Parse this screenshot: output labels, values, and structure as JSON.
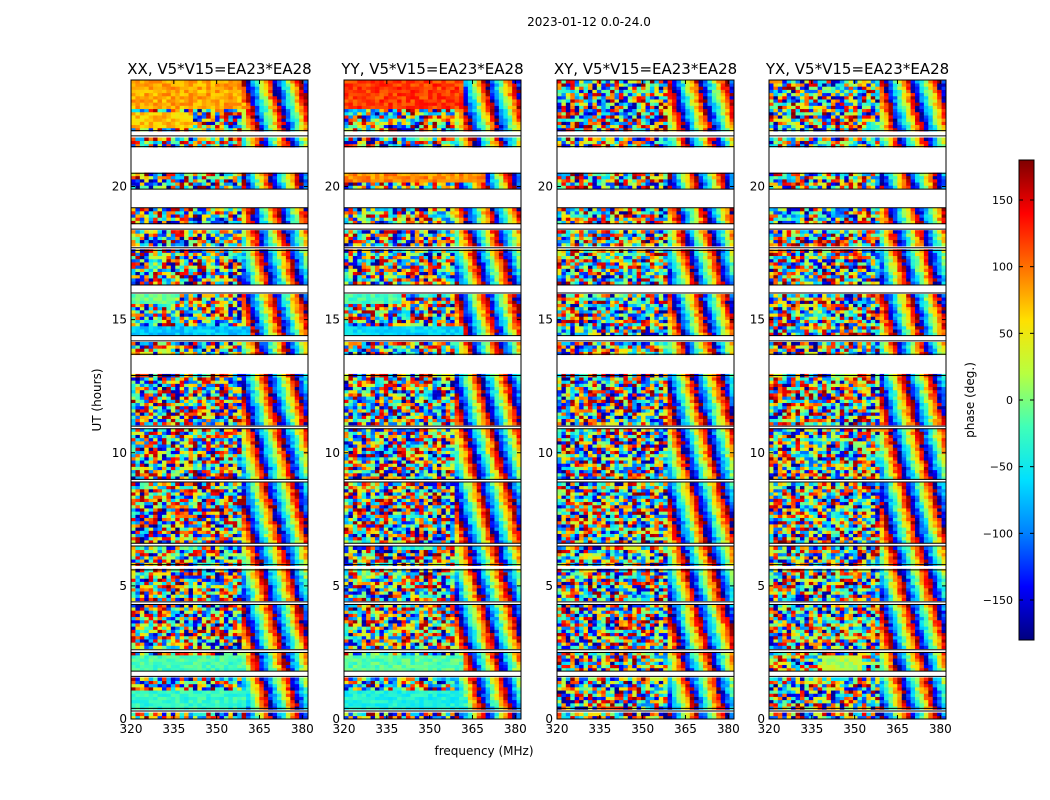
{
  "figure": {
    "suptitle": "2023-01-12 0.0-24.0",
    "xlabel": "frequency (MHz)",
    "ylabel": "UT (hours)"
  },
  "colorbar": {
    "label": "phase (deg.)",
    "range": [
      -180,
      180
    ],
    "ticks": [
      -150,
      -100,
      -50,
      0,
      50,
      100,
      150
    ],
    "tick_labels": [
      "−150",
      "−100",
      "−50",
      "0",
      "50",
      "100",
      "150"
    ],
    "colormap": [
      "#00007f",
      "#0000ff",
      "#0080ff",
      "#00e0ff",
      "#40ffb8",
      "#b8ff40",
      "#ffe000",
      "#ff7000",
      "#ff0000",
      "#7f0000"
    ]
  },
  "chart_data": [
    {
      "type": "heatmap",
      "title": "XX, V5*V15=EA23*EA28",
      "x_range": [
        320,
        382
      ],
      "y_range": [
        0,
        24
      ],
      "xticks": [
        320,
        335,
        350,
        365,
        380
      ],
      "yticks": [
        0,
        5,
        10,
        15,
        20
      ],
      "z": "phase (deg.)",
      "gaps_hours": [
        [
          0.3,
          0.4
        ],
        [
          1.6,
          1.8
        ],
        [
          2.5,
          2.6
        ],
        [
          4.3,
          4.4
        ],
        [
          5.6,
          5.8
        ],
        [
          6.5,
          6.6
        ],
        [
          8.9,
          9.0
        ],
        [
          10.9,
          11.0
        ],
        [
          12.9,
          13.7
        ],
        [
          14.2,
          14.4
        ],
        [
          16.0,
          16.3
        ],
        [
          17.6,
          17.7
        ],
        [
          18.4,
          18.6
        ],
        [
          19.2,
          19.9
        ],
        [
          20.5,
          21.5
        ],
        [
          21.9,
          22.1
        ]
      ],
      "coherent_regions": [
        {
          "t": [
            0.4,
            1.1
          ],
          "f": [
            320,
            360
          ],
          "phase_deg": -30
        },
        {
          "t": [
            1.8,
            2.4
          ],
          "f": [
            320,
            360
          ],
          "phase_deg": -20
        },
        {
          "t": [
            14.4,
            14.8
          ],
          "f": [
            320,
            362
          ],
          "phase_deg": -70
        },
        {
          "t": [
            15.6,
            15.9
          ],
          "f": [
            320,
            336
          ],
          "phase_deg": -10
        },
        {
          "t": [
            22.2,
            22.8
          ],
          "f": [
            320,
            342
          ],
          "phase_deg": 70
        },
        {
          "t": [
            22.9,
            24.0
          ],
          "f": [
            320,
            358
          ],
          "phase_deg": 80
        }
      ]
    },
    {
      "type": "heatmap",
      "title": "YY, V5*V15=EA23*EA28",
      "x_range": [
        320,
        382
      ],
      "y_range": [
        0,
        24
      ],
      "xticks": [
        320,
        335,
        350,
        365,
        380
      ],
      "yticks": [
        0,
        5,
        10,
        15,
        20
      ],
      "z": "phase (deg.)",
      "gaps_hours": [
        [
          0.3,
          0.4
        ],
        [
          1.6,
          1.8
        ],
        [
          2.5,
          2.6
        ],
        [
          4.3,
          4.4
        ],
        [
          5.6,
          5.8
        ],
        [
          6.5,
          6.6
        ],
        [
          8.9,
          9.0
        ],
        [
          10.9,
          11.0
        ],
        [
          12.9,
          13.7
        ],
        [
          14.2,
          14.4
        ],
        [
          16.0,
          16.3
        ],
        [
          17.6,
          17.7
        ],
        [
          18.4,
          18.6
        ],
        [
          19.2,
          19.9
        ],
        [
          20.5,
          21.5
        ],
        [
          21.9,
          22.1
        ]
      ],
      "coherent_regions": [
        {
          "t": [
            0.4,
            1.1
          ],
          "f": [
            320,
            362
          ],
          "phase_deg": -40
        },
        {
          "t": [
            1.8,
            2.4
          ],
          "f": [
            320,
            362
          ],
          "phase_deg": -15
        },
        {
          "t": [
            14.4,
            14.8
          ],
          "f": [
            320,
            362
          ],
          "phase_deg": -60
        },
        {
          "t": [
            15.6,
            15.9
          ],
          "f": [
            320,
            340
          ],
          "phase_deg": -20
        },
        {
          "t": [
            20.2,
            20.5
          ],
          "f": [
            320,
            370
          ],
          "phase_deg": 90
        },
        {
          "t": [
            22.9,
            24.0
          ],
          "f": [
            320,
            362
          ],
          "phase_deg": 120
        }
      ]
    },
    {
      "type": "heatmap",
      "title": "XY, V5*V15=EA23*EA28",
      "x_range": [
        320,
        382
      ],
      "y_range": [
        0,
        24
      ],
      "xticks": [
        320,
        335,
        350,
        365,
        380
      ],
      "yticks": [
        0,
        5,
        10,
        15,
        20
      ],
      "z": "phase (deg.)",
      "gaps_hours": [
        [
          0.3,
          0.4
        ],
        [
          1.6,
          1.8
        ],
        [
          2.5,
          2.6
        ],
        [
          4.3,
          4.4
        ],
        [
          5.6,
          5.8
        ],
        [
          6.5,
          6.6
        ],
        [
          8.9,
          9.0
        ],
        [
          10.9,
          11.0
        ],
        [
          12.9,
          13.7
        ],
        [
          14.2,
          14.4
        ],
        [
          16.0,
          16.3
        ],
        [
          17.6,
          17.7
        ],
        [
          18.4,
          18.6
        ],
        [
          19.2,
          19.9
        ],
        [
          20.5,
          21.5
        ],
        [
          21.9,
          22.1
        ]
      ],
      "coherent_regions": []
    },
    {
      "type": "heatmap",
      "title": "YX, V5*V15=EA23*EA28",
      "x_range": [
        320,
        382
      ],
      "y_range": [
        0,
        24
      ],
      "xticks": [
        320,
        335,
        350,
        365,
        380
      ],
      "yticks": [
        0,
        5,
        10,
        15,
        20
      ],
      "z": "phase (deg.)",
      "gaps_hours": [
        [
          0.3,
          0.4
        ],
        [
          1.6,
          1.8
        ],
        [
          2.5,
          2.6
        ],
        [
          4.3,
          4.4
        ],
        [
          5.6,
          5.8
        ],
        [
          6.5,
          6.6
        ],
        [
          8.9,
          9.0
        ],
        [
          10.9,
          11.0
        ],
        [
          12.9,
          13.7
        ],
        [
          14.2,
          14.4
        ],
        [
          16.0,
          16.3
        ],
        [
          17.6,
          17.7
        ],
        [
          18.4,
          18.6
        ],
        [
          19.2,
          19.9
        ],
        [
          20.5,
          21.5
        ],
        [
          21.9,
          22.1
        ]
      ],
      "coherent_regions": [
        {
          "t": [
            1.8,
            2.4
          ],
          "f": [
            338,
            352
          ],
          "phase_deg": 20
        }
      ]
    }
  ]
}
